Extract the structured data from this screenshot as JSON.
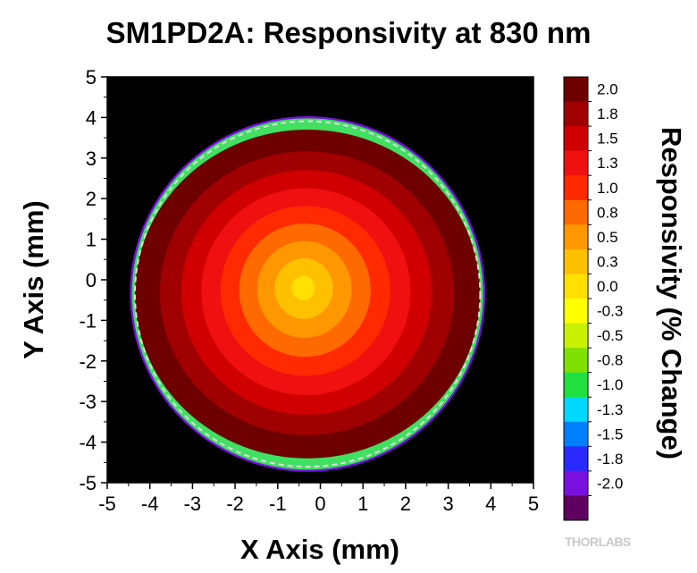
{
  "chart_data": {
    "type": "heatmap",
    "title": "SM1PD2A: Responsivity at 830 nm",
    "xlabel": "X Axis (mm)",
    "ylabel": "Y Axis (mm)",
    "xlim": [
      -5,
      5
    ],
    "ylim": [
      -5,
      5
    ],
    "x_ticks": [
      "-5",
      "-4",
      "-3",
      "-2",
      "-1",
      "0",
      "1",
      "2",
      "3",
      "4",
      "5"
    ],
    "y_ticks": [
      "5",
      "4",
      "3",
      "2",
      "1",
      "0",
      "-1",
      "-2",
      "-3",
      "-4",
      "-5"
    ],
    "background_color": "#000000",
    "active_area": {
      "center": [
        -0.3,
        -0.35
      ],
      "radius": 4.05,
      "outline": "dashed",
      "outline_color": "#dddddd"
    },
    "hotspot": {
      "center": [
        -0.4,
        -0.2
      ],
      "value": 0.0
    },
    "colorbar": {
      "title": "Responsivity (% Change)",
      "labels": [
        "2.0",
        "1.8",
        "1.5",
        "1.3",
        "1.0",
        "0.8",
        "0.5",
        "0.3",
        "0.0",
        "-0.3",
        "-0.5",
        "-0.8",
        "-1.0",
        "-1.3",
        "-1.5",
        "-1.8",
        "-2.0"
      ],
      "colors": [
        "#6e0000",
        "#a00000",
        "#d00000",
        "#f01010",
        "#ff2a00",
        "#ff6a00",
        "#ff9800",
        "#ffc000",
        "#ffe000",
        "#ffff00",
        "#c8f000",
        "#80e000",
        "#20e040",
        "#00d8ff",
        "#0080ff",
        "#2a2aff",
        "#7a10e0",
        "#600060"
      ],
      "contour_levels_used": [
        "2.0",
        "1.8",
        "1.5",
        "1.3",
        "1.0",
        "0.8",
        "0.5",
        "0.3",
        "0.0"
      ]
    }
  },
  "brand": "THORLABS"
}
